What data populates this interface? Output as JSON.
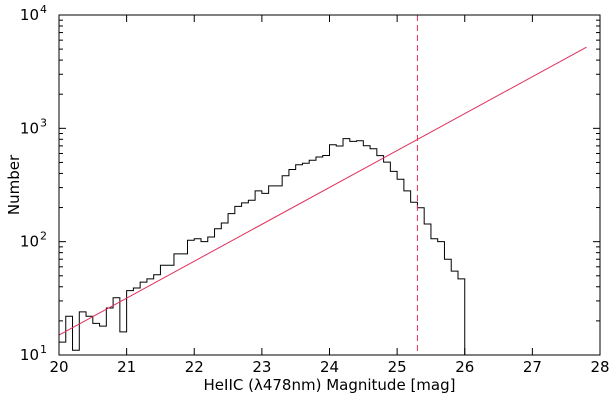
{
  "chart_data": {
    "type": "histogram",
    "xlabel": "HeIIC (λ478nm) Magnitude [mag]",
    "ylabel": "Number",
    "xlim": [
      20,
      28
    ],
    "ylim": [
      10,
      10000
    ],
    "yscale": "log",
    "grid": false,
    "x_ticks": [
      "20",
      "21",
      "22",
      "23",
      "24",
      "25",
      "26",
      "27",
      "28"
    ],
    "y_ticks": [
      {
        "base": "10",
        "exp": "1"
      },
      {
        "base": "10",
        "exp": "2"
      },
      {
        "base": "10",
        "exp": "3"
      },
      {
        "base": "10",
        "exp": "4"
      }
    ],
    "bin_width": 0.1,
    "bin_start": 20.0,
    "counts": [
      13,
      22,
      11,
      24,
      22,
      19,
      18,
      26,
      32,
      16,
      37,
      39,
      44,
      47,
      51,
      62,
      62,
      78,
      78,
      103,
      106,
      100,
      110,
      130,
      146,
      177,
      205,
      220,
      232,
      281,
      267,
      311,
      311,
      382,
      433,
      477,
      492,
      523,
      559,
      576,
      716,
      698,
      811,
      768,
      777,
      702,
      661,
      575,
      503,
      417,
      355,
      281,
      223,
      199,
      143,
      106,
      100,
      70,
      55,
      47
    ],
    "histogram_color": "#000000",
    "fit_line": {
      "x": [
        20.0,
        27.8
      ],
      "y": [
        15.0,
        5200.0
      ],
      "color": "#e0305a"
    },
    "vline": {
      "x": 25.3,
      "color": "#e0305a",
      "style": "dashed"
    }
  }
}
